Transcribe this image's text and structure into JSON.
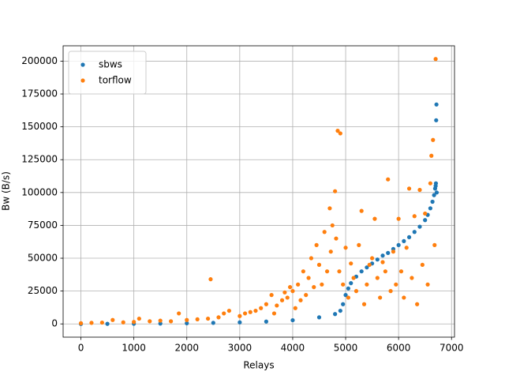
{
  "chart_data": {
    "type": "scatter",
    "x_label": "Relays",
    "y_label": "Bw (B/s)",
    "xlim": [
      -336,
      7056
    ],
    "ylim": [
      -10080,
      211680
    ],
    "xticks": [
      0,
      1000,
      2000,
      3000,
      4000,
      5000,
      6000,
      7000
    ],
    "yticks": [
      0,
      25000,
      50000,
      75000,
      100000,
      125000,
      150000,
      175000,
      200000
    ],
    "grid": true,
    "legend": "upper left",
    "series": [
      {
        "name": "sbws",
        "color": "#1f77b4",
        "x": [
          0,
          500,
          1000,
          1500,
          2000,
          2500,
          3000,
          3500,
          4000,
          4500,
          4800,
          4900,
          4950,
          5000,
          5050,
          5100,
          5200,
          5300,
          5400,
          5500,
          5600,
          5700,
          5800,
          5900,
          6000,
          6100,
          6200,
          6300,
          6400,
          6500,
          6550,
          6600,
          6640,
          6670,
          6690,
          6700,
          6705,
          6710,
          6715,
          6720
        ],
        "values": [
          0,
          50,
          150,
          300,
          500,
          800,
          1200,
          1800,
          2800,
          5000,
          7500,
          10000,
          15000,
          22000,
          27000,
          31000,
          36000,
          40000,
          43000,
          46000,
          49000,
          52000,
          54000,
          57000,
          60000,
          63000,
          66000,
          70000,
          74000,
          79000,
          83000,
          88000,
          93000,
          98000,
          103000,
          105000,
          107000,
          155000,
          167000,
          100000
        ]
      },
      {
        "name": "torflow",
        "color": "#ff7f0e",
        "x": [
          0,
          200,
          400,
          600,
          800,
          1000,
          1100,
          1300,
          1500,
          1700,
          1850,
          2000,
          2200,
          2400,
          2450,
          2600,
          2700,
          2800,
          3000,
          3100,
          3200,
          3300,
          3400,
          3500,
          3600,
          3650,
          3700,
          3800,
          3850,
          3900,
          3950,
          4000,
          4050,
          4100,
          4150,
          4200,
          4250,
          4300,
          4350,
          4400,
          4450,
          4500,
          4550,
          4600,
          4650,
          4700,
          4720,
          4750,
          4800,
          4820,
          4850,
          4880,
          4900,
          4950,
          5000,
          5050,
          5100,
          5150,
          5200,
          5250,
          5300,
          5350,
          5400,
          5450,
          5500,
          5550,
          5600,
          5650,
          5700,
          5750,
          5800,
          5850,
          5900,
          5950,
          6000,
          6050,
          6100,
          6150,
          6200,
          6250,
          6300,
          6350,
          6400,
          6450,
          6500,
          6550,
          6600,
          6620,
          6650,
          6680,
          6700
        ],
        "values": [
          500,
          800,
          1000,
          3000,
          1200,
          1500,
          4000,
          2000,
          2500,
          2000,
          8000,
          3000,
          3500,
          4000,
          34000,
          5000,
          8000,
          10000,
          6000,
          8000,
          9000,
          10000,
          12000,
          15000,
          22000,
          8000,
          14000,
          18000,
          24000,
          20000,
          28000,
          25000,
          12000,
          30000,
          18000,
          40000,
          22000,
          35000,
          50000,
          28000,
          60000,
          45000,
          30000,
          70000,
          40000,
          88000,
          55000,
          75000,
          101000,
          65000,
          147000,
          40000,
          145000,
          30000,
          58000,
          20000,
          46000,
          35000,
          25000,
          60000,
          86000,
          15000,
          30000,
          45000,
          50000,
          80000,
          35000,
          20000,
          47000,
          40000,
          110000,
          25000,
          55000,
          30000,
          80000,
          40000,
          20000,
          58000,
          103000,
          35000,
          82000,
          15000,
          102000,
          45000,
          84000,
          30000,
          107000,
          128000,
          140000,
          60000,
          201600
        ]
      }
    ]
  }
}
